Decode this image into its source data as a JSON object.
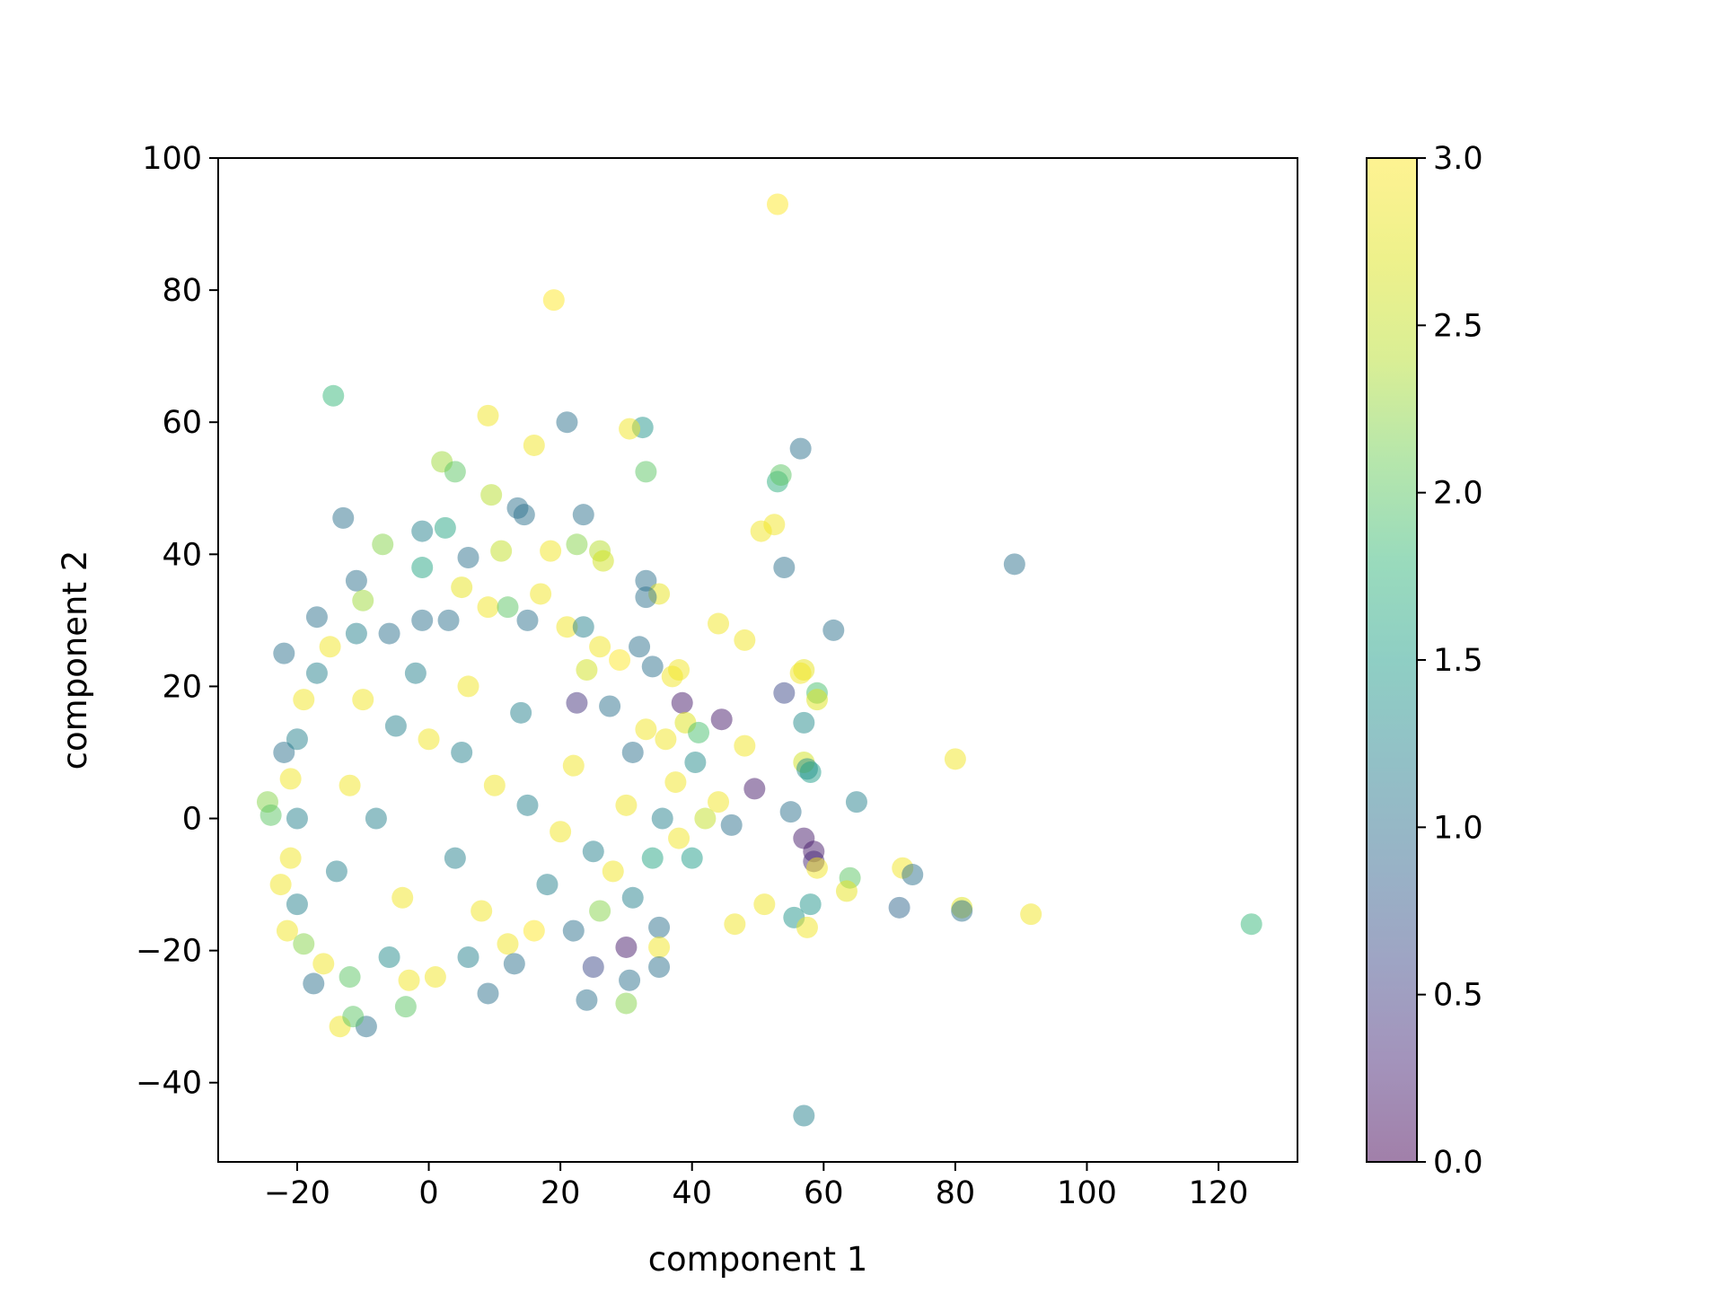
{
  "chart_data": {
    "type": "scatter",
    "xlabel": "component 1",
    "ylabel": "component 2",
    "xlim": [
      -32,
      132
    ],
    "ylim": [
      -52,
      100
    ],
    "xticks": [
      -20,
      0,
      20,
      40,
      60,
      80,
      100,
      120
    ],
    "xtick_labels": [
      "−20",
      "0",
      "20",
      "40",
      "60",
      "80",
      "100",
      "120"
    ],
    "yticks": [
      -40,
      -20,
      0,
      20,
      40,
      60,
      80,
      100
    ],
    "ytick_labels": [
      "−40",
      "−20",
      "0",
      "20",
      "40",
      "60",
      "80",
      "100"
    ],
    "grid": false,
    "marker_alpha": 0.5,
    "colormap": "viridis",
    "colorbar": {
      "range": [
        0.0,
        3.0
      ],
      "ticks": [
        0.0,
        0.5,
        1.0,
        1.5,
        2.0,
        2.5,
        3.0
      ],
      "tick_labels": [
        "0.0",
        "0.5",
        "1.0",
        "1.5",
        "2.0",
        "2.5",
        "3.0"
      ]
    },
    "points": [
      {
        "x": 53,
        "y": 93,
        "c": 3.0
      },
      {
        "x": 19,
        "y": 78.5,
        "c": 3.0
      },
      {
        "x": -14.5,
        "y": 64,
        "c": 1.8
      },
      {
        "x": 21,
        "y": 60,
        "c": 1.0
      },
      {
        "x": 9,
        "y": 61,
        "c": 2.9
      },
      {
        "x": 32.5,
        "y": 59.2,
        "c": 1.4
      },
      {
        "x": 30.5,
        "y": 59,
        "c": 2.9
      },
      {
        "x": 2,
        "y": 54,
        "c": 2.3
      },
      {
        "x": 4,
        "y": 52.5,
        "c": 2.0
      },
      {
        "x": 56.5,
        "y": 56,
        "c": 1.0
      },
      {
        "x": 53,
        "y": 51,
        "c": 1.7
      },
      {
        "x": 53.5,
        "y": 52,
        "c": 2.0
      },
      {
        "x": 33,
        "y": 52.5,
        "c": 2.0
      },
      {
        "x": 16,
        "y": 56.5,
        "c": 2.9
      },
      {
        "x": 9.5,
        "y": 49,
        "c": 2.4
      },
      {
        "x": 13.5,
        "y": 47,
        "c": 1.0
      },
      {
        "x": 14.5,
        "y": 46,
        "c": 1.0
      },
      {
        "x": 23.5,
        "y": 46,
        "c": 1.0
      },
      {
        "x": -13,
        "y": 45.5,
        "c": 1.0
      },
      {
        "x": 50.5,
        "y": 43.5,
        "c": 2.9
      },
      {
        "x": 52.5,
        "y": 44.5,
        "c": 2.9
      },
      {
        "x": 89,
        "y": 38.5,
        "c": 1.0
      },
      {
        "x": 54,
        "y": 38,
        "c": 1.0
      },
      {
        "x": 22.5,
        "y": 41.5,
        "c": 2.2
      },
      {
        "x": 26,
        "y": 40.5,
        "c": 2.4
      },
      {
        "x": 26.5,
        "y": 39,
        "c": 2.6
      },
      {
        "x": -7,
        "y": 41.5,
        "c": 2.2
      },
      {
        "x": -1,
        "y": 43.5,
        "c": 1.2
      },
      {
        "x": 2.5,
        "y": 44,
        "c": 1.6
      },
      {
        "x": 11,
        "y": 40.5,
        "c": 2.5
      },
      {
        "x": 18.5,
        "y": 40.5,
        "c": 2.9
      },
      {
        "x": 6,
        "y": 39.5,
        "c": 1.0
      },
      {
        "x": -1,
        "y": 38,
        "c": 1.6
      },
      {
        "x": -11,
        "y": 36,
        "c": 1.0
      },
      {
        "x": 33,
        "y": 36,
        "c": 1.0
      },
      {
        "x": 35,
        "y": 34,
        "c": 2.8
      },
      {
        "x": 33,
        "y": 33.5,
        "c": 1.0
      },
      {
        "x": -10,
        "y": 33,
        "c": 2.3
      },
      {
        "x": -17,
        "y": 30.5,
        "c": 1.0
      },
      {
        "x": -22,
        "y": 25,
        "c": 1.0
      },
      {
        "x": 32,
        "y": 26,
        "c": 1.0
      },
      {
        "x": 61.5,
        "y": 28.5,
        "c": 1.0
      },
      {
        "x": 48,
        "y": 27,
        "c": 2.9
      },
      {
        "x": 44,
        "y": 29.5,
        "c": 2.9
      },
      {
        "x": 57,
        "y": 22.5,
        "c": 2.8
      },
      {
        "x": 56.5,
        "y": 22,
        "c": 2.9
      },
      {
        "x": 54,
        "y": 19,
        "c": 0.6
      },
      {
        "x": 59,
        "y": 19,
        "c": 1.9
      },
      {
        "x": 59,
        "y": 18,
        "c": 2.7
      },
      {
        "x": 38.5,
        "y": 17.5,
        "c": 0.2
      },
      {
        "x": 44.5,
        "y": 15,
        "c": 0.2
      },
      {
        "x": 57,
        "y": 14.5,
        "c": 1.3
      },
      {
        "x": 48,
        "y": 11,
        "c": 2.9
      },
      {
        "x": 80,
        "y": 9,
        "c": 2.9
      },
      {
        "x": 57,
        "y": 8.5,
        "c": 2.6
      },
      {
        "x": 57.5,
        "y": 7.5,
        "c": 1.3
      },
      {
        "x": 58,
        "y": 7,
        "c": 1.5
      },
      {
        "x": 49.5,
        "y": 4.5,
        "c": 0.2
      },
      {
        "x": 65,
        "y": 2.5,
        "c": 1.2
      },
      {
        "x": 55,
        "y": 1,
        "c": 1.0
      },
      {
        "x": 57,
        "y": -3,
        "c": 0.2
      },
      {
        "x": 58.5,
        "y": -5,
        "c": 0.2
      },
      {
        "x": 58.5,
        "y": -6.5,
        "c": 0.3
      },
      {
        "x": 59,
        "y": -7.5,
        "c": 2.9
      },
      {
        "x": 64,
        "y": -9,
        "c": 2.0
      },
      {
        "x": 63.5,
        "y": -11,
        "c": 2.8
      },
      {
        "x": 72,
        "y": -7.5,
        "c": 2.9
      },
      {
        "x": 73.5,
        "y": -8.5,
        "c": 1.0
      },
      {
        "x": 71.5,
        "y": -13.5,
        "c": 0.9
      },
      {
        "x": 81,
        "y": -13.5,
        "c": 2.7
      },
      {
        "x": 81,
        "y": -14,
        "c": 1.0
      },
      {
        "x": 91.5,
        "y": -14.5,
        "c": 2.9
      },
      {
        "x": 125,
        "y": -16,
        "c": 1.8
      },
      {
        "x": 58,
        "y": -13,
        "c": 1.4
      },
      {
        "x": 55.5,
        "y": -15,
        "c": 1.4
      },
      {
        "x": 57.5,
        "y": -16.5,
        "c": 2.9
      },
      {
        "x": 51,
        "y": -13,
        "c": 2.9
      },
      {
        "x": 46.5,
        "y": -16,
        "c": 2.9
      },
      {
        "x": 35,
        "y": -16.5,
        "c": 1.0
      },
      {
        "x": 35,
        "y": -19.5,
        "c": 2.9
      },
      {
        "x": 30,
        "y": -19.5,
        "c": 0.2
      },
      {
        "x": 35,
        "y": -22.5,
        "c": 1.0
      },
      {
        "x": 25,
        "y": -22.5,
        "c": 0.6
      },
      {
        "x": 30.5,
        "y": -24.5,
        "c": 1.0
      },
      {
        "x": 24,
        "y": -27.5,
        "c": 1.0
      },
      {
        "x": 30,
        "y": -28,
        "c": 2.2
      },
      {
        "x": 9,
        "y": -26.5,
        "c": 1.0
      },
      {
        "x": -3,
        "y": -24.5,
        "c": 2.9
      },
      {
        "x": -9.5,
        "y": -31.5,
        "c": 1.0
      },
      {
        "x": -13.5,
        "y": -31.5,
        "c": 2.9
      },
      {
        "x": -11.5,
        "y": -30,
        "c": 2.0
      },
      {
        "x": -3.5,
        "y": -28.5,
        "c": 2.0
      },
      {
        "x": -17.5,
        "y": -25,
        "c": 1.0
      },
      {
        "x": -24.5,
        "y": 2.5,
        "c": 2.2
      },
      {
        "x": -24,
        "y": 0.5,
        "c": 2.0
      },
      {
        "x": -22,
        "y": 10,
        "c": 1.0
      },
      {
        "x": -22.5,
        "y": -10,
        "c": 2.9
      },
      {
        "x": -21.5,
        "y": -17,
        "c": 2.9
      },
      {
        "x": 57,
        "y": -45,
        "c": 1.2
      },
      {
        "x": 44,
        "y": 2.5,
        "c": 2.9
      },
      {
        "x": 42,
        "y": 0,
        "c": 2.5
      },
      {
        "x": 46,
        "y": -1,
        "c": 1.0
      },
      {
        "x": 40,
        "y": -6,
        "c": 1.5
      },
      {
        "x": 38,
        "y": -3,
        "c": 2.9
      },
      {
        "x": 40.5,
        "y": 8.5,
        "c": 1.3
      },
      {
        "x": 39,
        "y": 14.5,
        "c": 2.7
      },
      {
        "x": 41,
        "y": 13,
        "c": 1.9
      },
      {
        "x": 38,
        "y": 22.5,
        "c": 2.9
      },
      {
        "x": 37,
        "y": 21.5,
        "c": 2.9
      },
      {
        "x": 34,
        "y": 23,
        "c": 1.0
      },
      {
        "x": 29,
        "y": 24,
        "c": 3.0
      },
      {
        "x": 24,
        "y": 22.5,
        "c": 2.6
      },
      {
        "x": 22.5,
        "y": 17.5,
        "c": 0.4
      },
      {
        "x": 27.5,
        "y": 17,
        "c": 1.0
      },
      {
        "x": 33,
        "y": 13.5,
        "c": 2.9
      },
      {
        "x": 31,
        "y": 10,
        "c": 1.0
      },
      {
        "x": 36,
        "y": 12,
        "c": 2.9
      },
      {
        "x": 37.5,
        "y": 5.5,
        "c": 2.9
      },
      {
        "x": 35.5,
        "y": 0,
        "c": 1.2
      },
      {
        "x": 34,
        "y": -6,
        "c": 1.6
      },
      {
        "x": 28,
        "y": -8,
        "c": 2.9
      },
      {
        "x": 31,
        "y": -12,
        "c": 1.2
      },
      {
        "x": 26,
        "y": -14,
        "c": 2.2
      },
      {
        "x": 22,
        "y": -17,
        "c": 1.0
      },
      {
        "x": 16,
        "y": -17,
        "c": 3.0
      },
      {
        "x": 12,
        "y": -19,
        "c": 2.9
      },
      {
        "x": 13,
        "y": -22,
        "c": 1.0
      },
      {
        "x": 6,
        "y": -21,
        "c": 1.2
      },
      {
        "x": 1,
        "y": -24,
        "c": 2.9
      },
      {
        "x": -6,
        "y": -21,
        "c": 1.3
      },
      {
        "x": -12,
        "y": -24,
        "c": 2.0
      },
      {
        "x": -16,
        "y": -22,
        "c": 2.9
      },
      {
        "x": -19,
        "y": -19,
        "c": 2.2
      },
      {
        "x": -20,
        "y": -13,
        "c": 1.2
      },
      {
        "x": -21,
        "y": -6,
        "c": 2.9
      },
      {
        "x": -20,
        "y": 0,
        "c": 1.2
      },
      {
        "x": -21,
        "y": 6,
        "c": 2.9
      },
      {
        "x": -20,
        "y": 12,
        "c": 1.2
      },
      {
        "x": -19,
        "y": 18,
        "c": 2.9
      },
      {
        "x": -17,
        "y": 22,
        "c": 1.2
      },
      {
        "x": -15,
        "y": 26,
        "c": 2.9
      },
      {
        "x": -11,
        "y": 28,
        "c": 1.2
      },
      {
        "x": -6,
        "y": 28,
        "c": 1.0
      },
      {
        "x": -1,
        "y": 30,
        "c": 1.0
      },
      {
        "x": 3,
        "y": 30,
        "c": 1.0
      },
      {
        "x": 5,
        "y": 35,
        "c": 2.8
      },
      {
        "x": 9,
        "y": 32,
        "c": 2.9
      },
      {
        "x": 12,
        "y": 32,
        "c": 2.0
      },
      {
        "x": 15,
        "y": 30,
        "c": 1.0
      },
      {
        "x": 17,
        "y": 34,
        "c": 2.9
      },
      {
        "x": 21,
        "y": 29,
        "c": 2.9
      },
      {
        "x": 23.5,
        "y": 29,
        "c": 1.2
      },
      {
        "x": 26,
        "y": 26,
        "c": 2.9
      },
      {
        "x": -5,
        "y": 14,
        "c": 1.2
      },
      {
        "x": 0,
        "y": 12,
        "c": 2.9
      },
      {
        "x": 5,
        "y": 10,
        "c": 1.2
      },
      {
        "x": 10,
        "y": 5,
        "c": 2.9
      },
      {
        "x": 15,
        "y": 2,
        "c": 1.2
      },
      {
        "x": 20,
        "y": -2,
        "c": 2.9
      },
      {
        "x": 25,
        "y": -5,
        "c": 1.2
      },
      {
        "x": 30,
        "y": 2,
        "c": 2.9
      },
      {
        "x": -8,
        "y": 0,
        "c": 1.2
      },
      {
        "x": -12,
        "y": 5,
        "c": 2.9
      },
      {
        "x": -14,
        "y": -8,
        "c": 1.2
      },
      {
        "x": -4,
        "y": -12,
        "c": 2.9
      },
      {
        "x": 4,
        "y": -6,
        "c": 1.2
      },
      {
        "x": 8,
        "y": -14,
        "c": 2.9
      },
      {
        "x": 18,
        "y": -10,
        "c": 1.2
      },
      {
        "x": 22,
        "y": 8,
        "c": 2.9
      },
      {
        "x": 14,
        "y": 16,
        "c": 1.2
      },
      {
        "x": 6,
        "y": 20,
        "c": 2.9
      },
      {
        "x": -2,
        "y": 22,
        "c": 1.2
      },
      {
        "x": -10,
        "y": 18,
        "c": 2.9
      }
    ]
  }
}
